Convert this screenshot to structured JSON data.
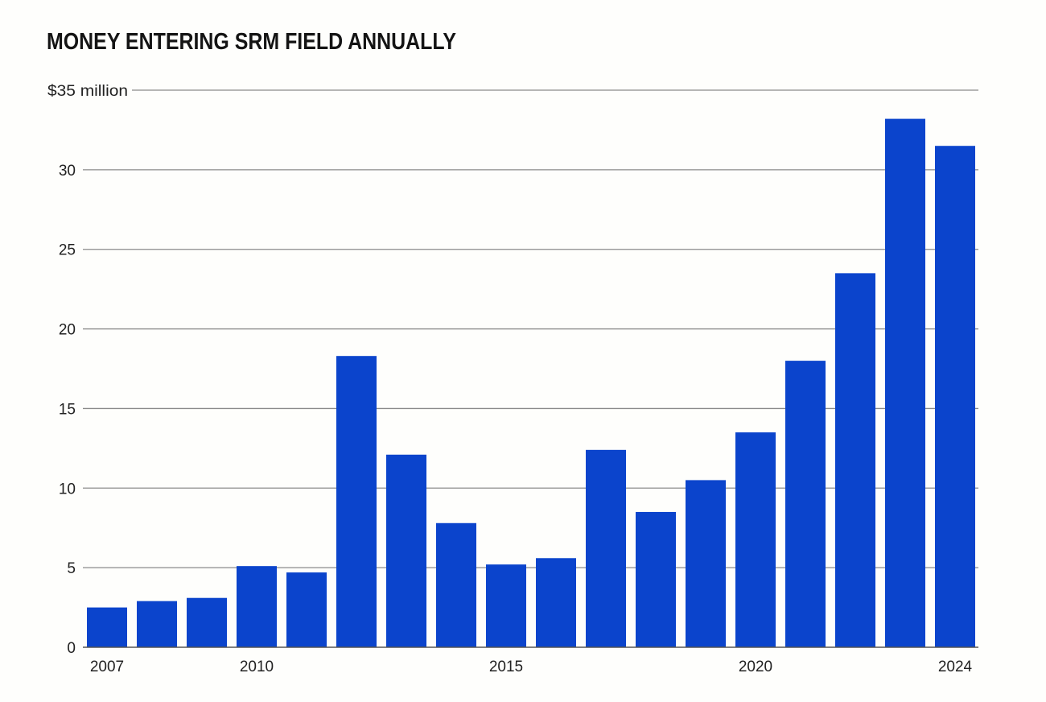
{
  "chart_data": {
    "type": "bar",
    "title": "MONEY ENTERING SRM FIELD ANNUALLY",
    "xlabel": "",
    "ylabel": "",
    "unit_label": "$35 million",
    "categories": [
      "2007",
      "2008",
      "2009",
      "2010",
      "2011",
      "2012",
      "2013",
      "2014",
      "2015",
      "2016",
      "2017",
      "2018",
      "2019",
      "2020",
      "2021",
      "2022",
      "2023",
      "2024"
    ],
    "x_tick_labels": [
      "2007",
      "2010",
      "2015",
      "2020",
      "2024"
    ],
    "y_tick_labels": [
      "0",
      "5",
      "10",
      "15",
      "20",
      "25",
      "30",
      "$35 million"
    ],
    "y_ticks": [
      0,
      5,
      10,
      15,
      20,
      25,
      30,
      35
    ],
    "ylim": [
      0,
      35
    ],
    "grid": true,
    "series": [
      {
        "values": [
          2.5,
          2.9,
          3.1,
          5.1,
          4.7,
          18.3,
          12.1,
          7.8,
          5.2,
          5.6,
          12.4,
          8.5,
          10.5,
          13.5,
          18.0,
          23.5,
          33.2,
          31.5
        ]
      }
    ],
    "colors": {
      "bar": "#0b44cc",
      "grid": "#8a8a8a",
      "axis": "#555555",
      "background": "#fefefc"
    }
  }
}
